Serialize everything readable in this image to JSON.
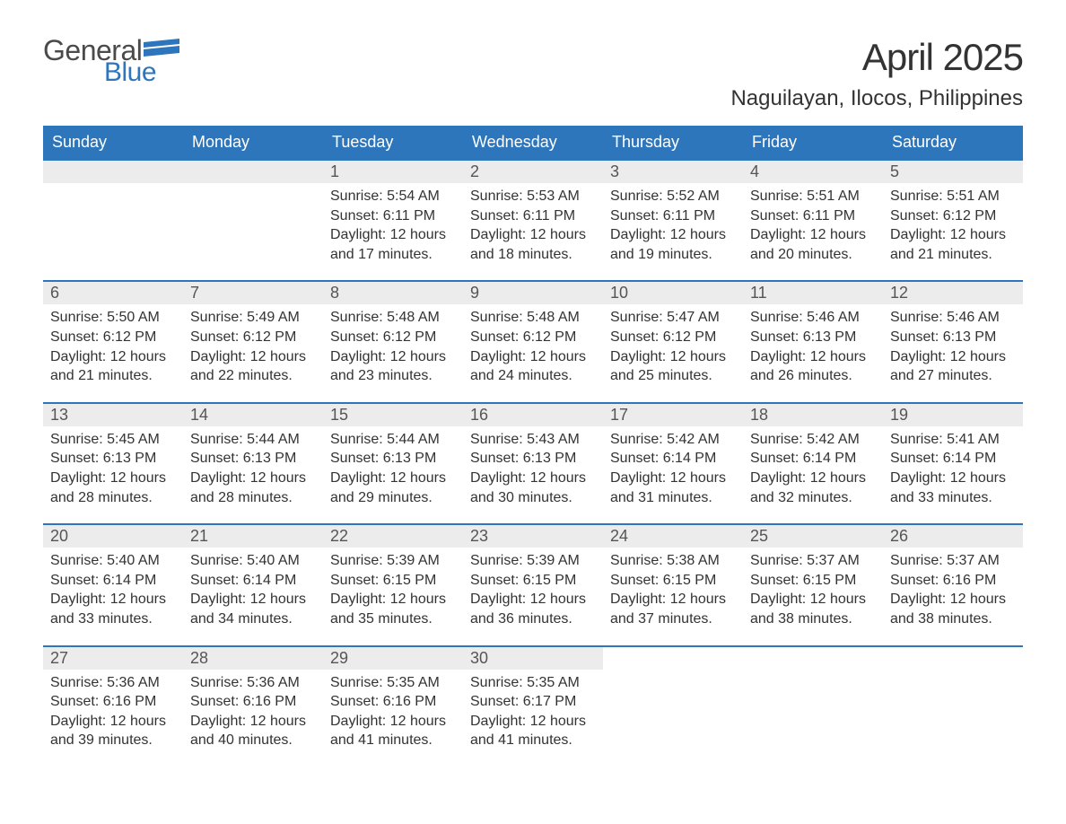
{
  "logo": {
    "text_general": "General",
    "text_blue": "Blue",
    "flag_color": "#2d76bb"
  },
  "title": {
    "month": "April 2025",
    "location": "Naguilayan, Ilocos, Philippines"
  },
  "colors": {
    "header_bg": "#2d76bb",
    "header_text": "#ffffff",
    "daynum_bg": "#ececec",
    "text": "#333333",
    "border": "#2d76bb"
  },
  "weekdays": [
    "Sunday",
    "Monday",
    "Tuesday",
    "Wednesday",
    "Thursday",
    "Friday",
    "Saturday"
  ],
  "weeks": [
    [
      null,
      null,
      {
        "n": "1",
        "sunrise": "Sunrise: 5:54 AM",
        "sunset": "Sunset: 6:11 PM",
        "day1": "Daylight: 12 hours",
        "day2": "and 17 minutes."
      },
      {
        "n": "2",
        "sunrise": "Sunrise: 5:53 AM",
        "sunset": "Sunset: 6:11 PM",
        "day1": "Daylight: 12 hours",
        "day2": "and 18 minutes."
      },
      {
        "n": "3",
        "sunrise": "Sunrise: 5:52 AM",
        "sunset": "Sunset: 6:11 PM",
        "day1": "Daylight: 12 hours",
        "day2": "and 19 minutes."
      },
      {
        "n": "4",
        "sunrise": "Sunrise: 5:51 AM",
        "sunset": "Sunset: 6:11 PM",
        "day1": "Daylight: 12 hours",
        "day2": "and 20 minutes."
      },
      {
        "n": "5",
        "sunrise": "Sunrise: 5:51 AM",
        "sunset": "Sunset: 6:12 PM",
        "day1": "Daylight: 12 hours",
        "day2": "and 21 minutes."
      }
    ],
    [
      {
        "n": "6",
        "sunrise": "Sunrise: 5:50 AM",
        "sunset": "Sunset: 6:12 PM",
        "day1": "Daylight: 12 hours",
        "day2": "and 21 minutes."
      },
      {
        "n": "7",
        "sunrise": "Sunrise: 5:49 AM",
        "sunset": "Sunset: 6:12 PM",
        "day1": "Daylight: 12 hours",
        "day2": "and 22 minutes."
      },
      {
        "n": "8",
        "sunrise": "Sunrise: 5:48 AM",
        "sunset": "Sunset: 6:12 PM",
        "day1": "Daylight: 12 hours",
        "day2": "and 23 minutes."
      },
      {
        "n": "9",
        "sunrise": "Sunrise: 5:48 AM",
        "sunset": "Sunset: 6:12 PM",
        "day1": "Daylight: 12 hours",
        "day2": "and 24 minutes."
      },
      {
        "n": "10",
        "sunrise": "Sunrise: 5:47 AM",
        "sunset": "Sunset: 6:12 PM",
        "day1": "Daylight: 12 hours",
        "day2": "and 25 minutes."
      },
      {
        "n": "11",
        "sunrise": "Sunrise: 5:46 AM",
        "sunset": "Sunset: 6:13 PM",
        "day1": "Daylight: 12 hours",
        "day2": "and 26 minutes."
      },
      {
        "n": "12",
        "sunrise": "Sunrise: 5:46 AM",
        "sunset": "Sunset: 6:13 PM",
        "day1": "Daylight: 12 hours",
        "day2": "and 27 minutes."
      }
    ],
    [
      {
        "n": "13",
        "sunrise": "Sunrise: 5:45 AM",
        "sunset": "Sunset: 6:13 PM",
        "day1": "Daylight: 12 hours",
        "day2": "and 28 minutes."
      },
      {
        "n": "14",
        "sunrise": "Sunrise: 5:44 AM",
        "sunset": "Sunset: 6:13 PM",
        "day1": "Daylight: 12 hours",
        "day2": "and 28 minutes."
      },
      {
        "n": "15",
        "sunrise": "Sunrise: 5:44 AM",
        "sunset": "Sunset: 6:13 PM",
        "day1": "Daylight: 12 hours",
        "day2": "and 29 minutes."
      },
      {
        "n": "16",
        "sunrise": "Sunrise: 5:43 AM",
        "sunset": "Sunset: 6:13 PM",
        "day1": "Daylight: 12 hours",
        "day2": "and 30 minutes."
      },
      {
        "n": "17",
        "sunrise": "Sunrise: 5:42 AM",
        "sunset": "Sunset: 6:14 PM",
        "day1": "Daylight: 12 hours",
        "day2": "and 31 minutes."
      },
      {
        "n": "18",
        "sunrise": "Sunrise: 5:42 AM",
        "sunset": "Sunset: 6:14 PM",
        "day1": "Daylight: 12 hours",
        "day2": "and 32 minutes."
      },
      {
        "n": "19",
        "sunrise": "Sunrise: 5:41 AM",
        "sunset": "Sunset: 6:14 PM",
        "day1": "Daylight: 12 hours",
        "day2": "and 33 minutes."
      }
    ],
    [
      {
        "n": "20",
        "sunrise": "Sunrise: 5:40 AM",
        "sunset": "Sunset: 6:14 PM",
        "day1": "Daylight: 12 hours",
        "day2": "and 33 minutes."
      },
      {
        "n": "21",
        "sunrise": "Sunrise: 5:40 AM",
        "sunset": "Sunset: 6:14 PM",
        "day1": "Daylight: 12 hours",
        "day2": "and 34 minutes."
      },
      {
        "n": "22",
        "sunrise": "Sunrise: 5:39 AM",
        "sunset": "Sunset: 6:15 PM",
        "day1": "Daylight: 12 hours",
        "day2": "and 35 minutes."
      },
      {
        "n": "23",
        "sunrise": "Sunrise: 5:39 AM",
        "sunset": "Sunset: 6:15 PM",
        "day1": "Daylight: 12 hours",
        "day2": "and 36 minutes."
      },
      {
        "n": "24",
        "sunrise": "Sunrise: 5:38 AM",
        "sunset": "Sunset: 6:15 PM",
        "day1": "Daylight: 12 hours",
        "day2": "and 37 minutes."
      },
      {
        "n": "25",
        "sunrise": "Sunrise: 5:37 AM",
        "sunset": "Sunset: 6:15 PM",
        "day1": "Daylight: 12 hours",
        "day2": "and 38 minutes."
      },
      {
        "n": "26",
        "sunrise": "Sunrise: 5:37 AM",
        "sunset": "Sunset: 6:16 PM",
        "day1": "Daylight: 12 hours",
        "day2": "and 38 minutes."
      }
    ],
    [
      {
        "n": "27",
        "sunrise": "Sunrise: 5:36 AM",
        "sunset": "Sunset: 6:16 PM",
        "day1": "Daylight: 12 hours",
        "day2": "and 39 minutes."
      },
      {
        "n": "28",
        "sunrise": "Sunrise: 5:36 AM",
        "sunset": "Sunset: 6:16 PM",
        "day1": "Daylight: 12 hours",
        "day2": "and 40 minutes."
      },
      {
        "n": "29",
        "sunrise": "Sunrise: 5:35 AM",
        "sunset": "Sunset: 6:16 PM",
        "day1": "Daylight: 12 hours",
        "day2": "and 41 minutes."
      },
      {
        "n": "30",
        "sunrise": "Sunrise: 5:35 AM",
        "sunset": "Sunset: 6:17 PM",
        "day1": "Daylight: 12 hours",
        "day2": "and 41 minutes."
      },
      null,
      null,
      null
    ]
  ]
}
